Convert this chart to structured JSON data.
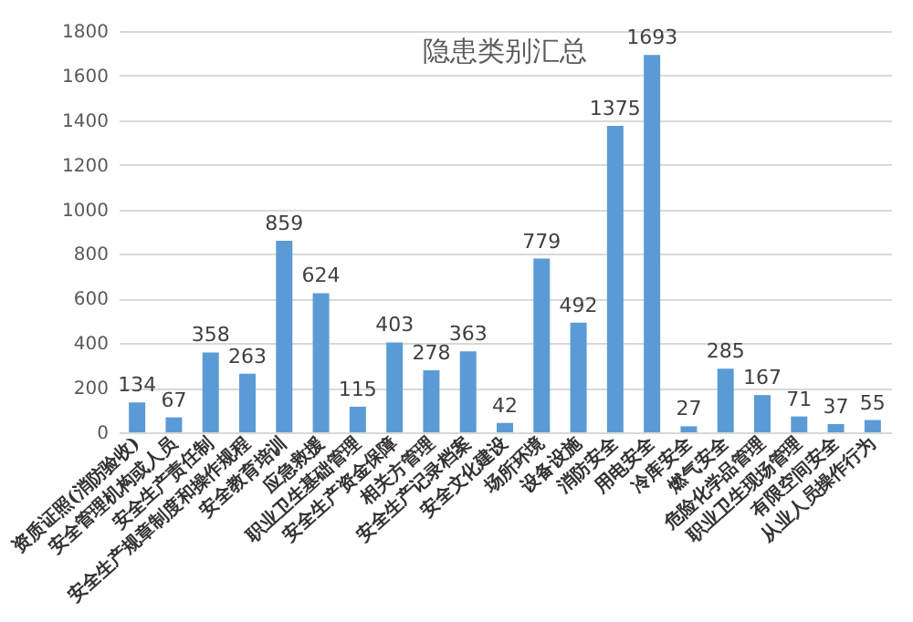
{
  "chart_data": {
    "type": "bar",
    "title": "隐患类别汇总",
    "categories": [
      "资质证照(消防验收)",
      "安全管理机构或人员",
      "安全生产责任制",
      "安全生产规章制度和操作规程",
      "安全教育培训",
      "应急救援",
      "职业卫生基础管理",
      "安全生产资金保障",
      "相关方管理",
      "安全生产记录档案",
      "安全文化建设",
      "场所环境",
      "设备设施",
      "消防安全",
      "用电安全",
      "冷库安全",
      "燃气安全",
      "危险化学品管理",
      "职业卫生现场管理",
      "有限空间安全",
      "从业人员操作行为"
    ],
    "values": [
      134,
      67,
      358,
      263,
      859,
      624,
      115,
      403,
      278,
      363,
      42,
      779,
      492,
      1375,
      1693,
      27,
      285,
      167,
      71,
      37,
      55
    ],
    "color": "#5b9bd5",
    "ylim": [
      0,
      1800
    ],
    "yticks": [
      0,
      200,
      400,
      600,
      800,
      1000,
      1200,
      1400,
      1600,
      1800
    ],
    "grid": "y",
    "data_labels": true
  }
}
